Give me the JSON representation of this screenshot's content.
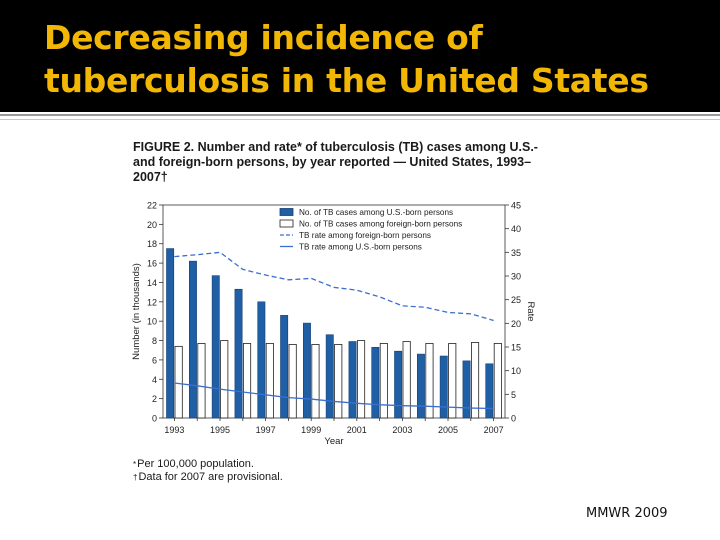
{
  "slide": {
    "title": "Decreasing incidence of tuberculosis in the United States",
    "source": "MMWR 2009"
  },
  "figure": {
    "number": "FIGURE 2.",
    "caption": "Number and rate* of tuberculosis (TB) cases among U.S.- and foreign-born persons, by year reported — United States, 1993–2007†",
    "footnotes": [
      {
        "mark": "*",
        "text": "Per 100,000 population."
      },
      {
        "mark": "†",
        "text": "Data for 2007 are provisional."
      }
    ]
  },
  "chart_data": {
    "type": "bar",
    "x": [
      1993,
      1994,
      1995,
      1996,
      1997,
      1998,
      1999,
      2000,
      2001,
      2002,
      2003,
      2004,
      2005,
      2006,
      2007
    ],
    "x_tick_labels": [
      "1993",
      "1995",
      "1997",
      "1999",
      "2001",
      "2003",
      "2005",
      "2007"
    ],
    "xlabel": "Year",
    "ylabel_left": "Number (in thousands)",
    "ylabel_right": "Rate",
    "ylim_left": [
      0,
      22
    ],
    "ylim_right": [
      0,
      45
    ],
    "yticks_left": [
      0,
      2,
      4,
      6,
      8,
      10,
      12,
      14,
      16,
      18,
      20,
      22
    ],
    "yticks_right": [
      0,
      5,
      10,
      15,
      20,
      25,
      30,
      35,
      40,
      45
    ],
    "series": [
      {
        "name": "No. of TB cases among U.S.-born persons",
        "kind": "bar",
        "axis": "left",
        "color": "#1f5fa6",
        "values": [
          17.5,
          16.2,
          14.7,
          13.3,
          12.0,
          10.6,
          9.8,
          8.6,
          7.9,
          7.3,
          6.9,
          6.6,
          6.4,
          5.9,
          5.6
        ]
      },
      {
        "name": "No. of TB cases among foreign-born persons",
        "kind": "bar",
        "axis": "left",
        "color": "#ffffff",
        "values": [
          7.4,
          7.7,
          8.0,
          7.7,
          7.7,
          7.6,
          7.6,
          7.6,
          8.0,
          7.7,
          7.9,
          7.7,
          7.7,
          7.8,
          7.7
        ]
      },
      {
        "name": "TB rate among foreign-born persons",
        "kind": "line",
        "style": "dashed",
        "axis": "right",
        "color": "#3b6fd0",
        "values": [
          34.1,
          34.5,
          35.0,
          31.4,
          30.2,
          29.2,
          29.5,
          27.6,
          27.0,
          25.6,
          23.7,
          23.4,
          22.3,
          22.0,
          20.6
        ]
      },
      {
        "name": "TB rate among U.S.-born persons",
        "kind": "line",
        "style": "solid",
        "axis": "right",
        "color": "#3b6fd0",
        "values": [
          7.4,
          6.8,
          6.1,
          5.5,
          4.9,
          4.3,
          4.0,
          3.5,
          3.1,
          2.8,
          2.6,
          2.5,
          2.3,
          2.1,
          2.0
        ]
      }
    ],
    "legend_position": "top-right",
    "grid": false
  }
}
